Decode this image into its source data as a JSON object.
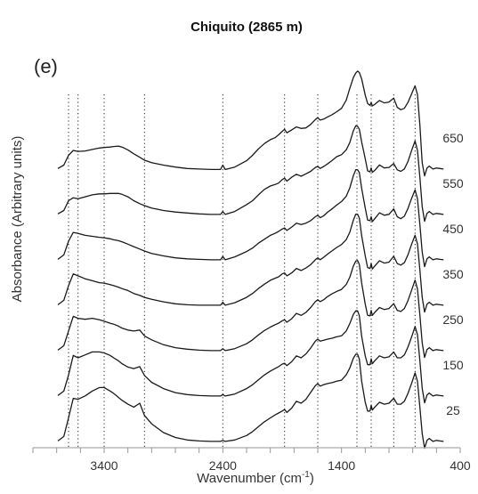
{
  "chart_data": {
    "type": "line",
    "title": "Chiquito (2865 m)",
    "panel_label": "(e)",
    "xlabel_main": "Wavenumber (cm",
    "xlabel_sup": "-1",
    "xlabel_tail": ")",
    "ylabel": "Absorbance (Arbitrary units)",
    "xlim": [
      4000,
      400
    ],
    "x_reversed": true,
    "xticks": [
      3400,
      2400,
      1400,
      400
    ],
    "y_axis_ticks": false,
    "grid": false,
    "reference_lines": [
      3700,
      3620,
      3400,
      3060,
      2400,
      1880,
      1600,
      1270,
      1150,
      960,
      780
    ],
    "series": [
      {
        "name": "650",
        "x": [
          3790,
          3740,
          3700,
          3660,
          3620,
          3560,
          3500,
          3440,
          3400,
          3350,
          3320,
          3280,
          3250,
          3200,
          3150,
          3100,
          3060,
          3000,
          2900,
          2800,
          2700,
          2600,
          2500,
          2420,
          2400,
          2380,
          2300,
          2200,
          2150,
          2100,
          2050,
          2000,
          1960,
          1930,
          1900,
          1880,
          1860,
          1820,
          1780,
          1740,
          1700,
          1660,
          1620,
          1600,
          1580,
          1550,
          1520,
          1480,
          1440,
          1400,
          1360,
          1330,
          1300,
          1280,
          1265,
          1250,
          1230,
          1200,
          1180,
          1160,
          1150,
          1140,
          1120,
          1080,
          1040,
          1000,
          960,
          930,
          900,
          870,
          840,
          810,
          780,
          760,
          740,
          720,
          700,
          680,
          660,
          630,
          600,
          570,
          540
        ],
        "y": [
          0.03,
          0.1,
          0.3,
          0.4,
          0.38,
          0.39,
          0.42,
          0.45,
          0.46,
          0.47,
          0.48,
          0.49,
          0.47,
          0.41,
          0.33,
          0.26,
          0.2,
          0.15,
          0.1,
          0.06,
          0.03,
          0.02,
          0.01,
          0.01,
          0.1,
          0.01,
          0.06,
          0.19,
          0.3,
          0.43,
          0.54,
          0.62,
          0.66,
          0.72,
          0.79,
          0.83,
          0.76,
          0.82,
          0.88,
          0.85,
          0.86,
          0.93,
          1.03,
          1.07,
          1.02,
          1.04,
          1.08,
          1.13,
          1.19,
          1.26,
          1.43,
          1.67,
          1.89,
          1.98,
          2.02,
          1.99,
          1.86,
          1.53,
          1.36,
          1.32,
          1.38,
          1.31,
          1.34,
          1.42,
          1.37,
          1.39,
          1.47,
          1.28,
          1.23,
          1.26,
          1.38,
          1.55,
          1.72,
          1.54,
          0.92,
          0.15,
          -0.12,
          0.04,
          0.08,
          0.02,
          0.04,
          0.03,
          0.02
        ]
      },
      {
        "name": "550",
        "x": [
          3790,
          3740,
          3700,
          3660,
          3620,
          3560,
          3500,
          3440,
          3400,
          3350,
          3320,
          3280,
          3250,
          3200,
          3150,
          3100,
          3060,
          3000,
          2900,
          2800,
          2700,
          2600,
          2500,
          2420,
          2400,
          2380,
          2300,
          2200,
          2150,
          2100,
          2050,
          2000,
          1960,
          1930,
          1900,
          1880,
          1860,
          1820,
          1780,
          1740,
          1700,
          1660,
          1620,
          1600,
          1580,
          1550,
          1520,
          1480,
          1440,
          1400,
          1360,
          1330,
          1300,
          1280,
          1265,
          1250,
          1230,
          1200,
          1180,
          1160,
          1150,
          1140,
          1120,
          1080,
          1040,
          1000,
          960,
          930,
          900,
          870,
          840,
          810,
          780,
          760,
          740,
          720,
          700,
          680,
          660,
          630,
          600,
          570,
          540
        ],
        "y": [
          0.03,
          0.1,
          0.3,
          0.36,
          0.34,
          0.38,
          0.42,
          0.44,
          0.44,
          0.45,
          0.45,
          0.45,
          0.43,
          0.38,
          0.3,
          0.24,
          0.2,
          0.15,
          0.1,
          0.07,
          0.05,
          0.03,
          0.02,
          0.02,
          0.08,
          0.02,
          0.08,
          0.22,
          0.3,
          0.42,
          0.53,
          0.6,
          0.63,
          0.66,
          0.73,
          0.76,
          0.7,
          0.78,
          0.84,
          0.8,
          0.85,
          0.9,
          0.98,
          1.0,
          0.96,
          1.0,
          1.05,
          1.12,
          1.2,
          1.24,
          1.34,
          1.49,
          1.73,
          1.83,
          1.82,
          1.76,
          1.5,
          1.16,
          0.91,
          0.89,
          0.97,
          0.88,
          0.92,
          1.03,
          0.97,
          0.98,
          1.06,
          0.93,
          0.9,
          0.95,
          1.1,
          1.32,
          1.52,
          1.33,
          0.78,
          0.18,
          -0.12,
          0.04,
          0.08,
          0.02,
          0.04,
          0.03,
          0.02
        ]
      },
      {
        "name": "450",
        "x": [
          3790,
          3740,
          3700,
          3660,
          3620,
          3560,
          3500,
          3440,
          3400,
          3350,
          3320,
          3280,
          3250,
          3200,
          3150,
          3100,
          3060,
          3000,
          2900,
          2800,
          2700,
          2600,
          2500,
          2420,
          2400,
          2380,
          2300,
          2200,
          2150,
          2100,
          2050,
          2000,
          1960,
          1930,
          1900,
          1880,
          1860,
          1820,
          1780,
          1740,
          1700,
          1660,
          1620,
          1600,
          1580,
          1550,
          1520,
          1480,
          1440,
          1400,
          1360,
          1330,
          1300,
          1280,
          1265,
          1250,
          1230,
          1200,
          1180,
          1160,
          1150,
          1140,
          1120,
          1080,
          1040,
          1000,
          960,
          930,
          900,
          870,
          840,
          810,
          780,
          760,
          740,
          720,
          700,
          680,
          660,
          630,
          600,
          570,
          540
        ],
        "y": [
          0.03,
          0.12,
          0.4,
          0.58,
          0.56,
          0.52,
          0.5,
          0.48,
          0.47,
          0.45,
          0.43,
          0.41,
          0.39,
          0.34,
          0.29,
          0.24,
          0.2,
          0.15,
          0.1,
          0.06,
          0.04,
          0.03,
          0.02,
          0.02,
          0.09,
          0.02,
          0.08,
          0.19,
          0.26,
          0.36,
          0.44,
          0.52,
          0.56,
          0.6,
          0.65,
          0.67,
          0.62,
          0.69,
          0.77,
          0.74,
          0.77,
          0.82,
          0.9,
          0.93,
          0.88,
          0.92,
          0.99,
          1.06,
          1.14,
          1.21,
          1.32,
          1.49,
          1.74,
          1.86,
          1.86,
          1.8,
          1.48,
          1.08,
          0.83,
          0.82,
          0.9,
          0.8,
          0.86,
          0.98,
          0.93,
          0.95,
          1.06,
          0.9,
          0.86,
          0.91,
          1.07,
          1.27,
          1.45,
          1.27,
          0.74,
          0.18,
          -0.12,
          0.04,
          0.08,
          0.02,
          0.04,
          0.03,
          0.02
        ]
      },
      {
        "name": "350",
        "x": [
          3790,
          3740,
          3700,
          3660,
          3620,
          3560,
          3500,
          3440,
          3400,
          3350,
          3320,
          3280,
          3250,
          3200,
          3150,
          3100,
          3060,
          3000,
          2900,
          2800,
          2700,
          2600,
          2500,
          2420,
          2400,
          2380,
          2300,
          2200,
          2150,
          2100,
          2050,
          2000,
          1960,
          1930,
          1900,
          1880,
          1860,
          1820,
          1780,
          1740,
          1700,
          1660,
          1620,
          1600,
          1580,
          1550,
          1520,
          1480,
          1440,
          1400,
          1360,
          1330,
          1300,
          1280,
          1265,
          1250,
          1230,
          1200,
          1180,
          1160,
          1150,
          1140,
          1120,
          1080,
          1040,
          1000,
          960,
          930,
          900,
          870,
          840,
          810,
          780,
          760,
          740,
          720,
          700,
          680,
          660,
          630,
          600,
          570,
          540
        ],
        "y": [
          0.03,
          0.12,
          0.42,
          0.66,
          0.62,
          0.56,
          0.52,
          0.48,
          0.47,
          0.44,
          0.42,
          0.39,
          0.36,
          0.32,
          0.26,
          0.22,
          0.18,
          0.14,
          0.09,
          0.05,
          0.03,
          0.02,
          0.02,
          0.02,
          0.08,
          0.02,
          0.07,
          0.18,
          0.26,
          0.36,
          0.45,
          0.53,
          0.57,
          0.6,
          0.66,
          0.68,
          0.62,
          0.68,
          0.77,
          0.73,
          0.78,
          0.85,
          0.95,
          0.99,
          0.95,
          1.0,
          1.06,
          1.13,
          1.2,
          1.26,
          1.36,
          1.51,
          1.76,
          1.88,
          1.88,
          1.8,
          1.44,
          1.03,
          0.79,
          0.77,
          0.87,
          0.76,
          0.82,
          0.93,
          0.88,
          0.9,
          1.02,
          0.87,
          0.84,
          0.89,
          1.05,
          1.26,
          1.45,
          1.27,
          0.74,
          0.18,
          -0.12,
          0.04,
          0.08,
          0.02,
          0.04,
          0.03,
          0.02
        ]
      },
      {
        "name": "250",
        "x": [
          3790,
          3740,
          3700,
          3660,
          3620,
          3560,
          3500,
          3440,
          3400,
          3350,
          3320,
          3280,
          3250,
          3200,
          3150,
          3100,
          3060,
          3000,
          2900,
          2800,
          2700,
          2600,
          2500,
          2420,
          2400,
          2380,
          2300,
          2200,
          2150,
          2100,
          2050,
          2000,
          1960,
          1930,
          1900,
          1880,
          1860,
          1820,
          1780,
          1740,
          1700,
          1660,
          1620,
          1600,
          1580,
          1550,
          1520,
          1480,
          1440,
          1400,
          1360,
          1330,
          1300,
          1280,
          1265,
          1250,
          1230,
          1200,
          1180,
          1160,
          1150,
          1140,
          1120,
          1080,
          1040,
          1000,
          960,
          930,
          900,
          870,
          840,
          810,
          780,
          760,
          740,
          720,
          700,
          680,
          660,
          630,
          600,
          570,
          540
        ],
        "y": [
          0.03,
          0.12,
          0.42,
          0.72,
          0.68,
          0.66,
          0.68,
          0.65,
          0.62,
          0.58,
          0.56,
          0.52,
          0.48,
          0.44,
          0.42,
          0.44,
          0.32,
          0.24,
          0.14,
          0.08,
          0.05,
          0.03,
          0.02,
          0.02,
          0.06,
          0.02,
          0.06,
          0.16,
          0.24,
          0.34,
          0.43,
          0.5,
          0.55,
          0.58,
          0.63,
          0.65,
          0.6,
          0.67,
          0.78,
          0.74,
          0.8,
          0.9,
          1.02,
          1.06,
          1.02,
          1.06,
          1.12,
          1.18,
          1.23,
          1.27,
          1.37,
          1.52,
          1.75,
          1.85,
          1.86,
          1.78,
          1.4,
          0.97,
          0.74,
          0.73,
          0.84,
          0.74,
          0.8,
          0.9,
          0.86,
          0.88,
          0.98,
          0.84,
          0.82,
          0.88,
          1.04,
          1.25,
          1.46,
          1.28,
          0.75,
          0.18,
          -0.12,
          0.04,
          0.08,
          0.02,
          0.04,
          0.03,
          0.02
        ]
      },
      {
        "name": "150",
        "x": [
          3790,
          3740,
          3700,
          3660,
          3620,
          3560,
          3500,
          3440,
          3400,
          3350,
          3320,
          3280,
          3250,
          3200,
          3150,
          3100,
          3060,
          3000,
          2900,
          2800,
          2700,
          2600,
          2500,
          2420,
          2400,
          2380,
          2300,
          2200,
          2150,
          2100,
          2050,
          2000,
          1960,
          1930,
          1900,
          1880,
          1860,
          1820,
          1780,
          1740,
          1700,
          1660,
          1620,
          1600,
          1580,
          1550,
          1520,
          1480,
          1440,
          1400,
          1360,
          1330,
          1300,
          1280,
          1265,
          1250,
          1230,
          1200,
          1180,
          1160,
          1150,
          1140,
          1120,
          1080,
          1040,
          1000,
          960,
          930,
          900,
          870,
          840,
          810,
          780,
          760,
          740,
          720,
          700,
          680,
          660,
          630,
          600,
          570,
          540
        ],
        "y": [
          0.03,
          0.12,
          0.45,
          0.85,
          0.8,
          0.86,
          0.92,
          0.92,
          0.9,
          0.85,
          0.8,
          0.74,
          0.68,
          0.61,
          0.58,
          0.62,
          0.44,
          0.3,
          0.17,
          0.09,
          0.05,
          0.03,
          0.02,
          0.02,
          0.05,
          0.02,
          0.06,
          0.17,
          0.25,
          0.35,
          0.45,
          0.53,
          0.58,
          0.62,
          0.67,
          0.69,
          0.64,
          0.72,
          0.84,
          0.8,
          0.88,
          1.0,
          1.14,
          1.18,
          1.14,
          1.16,
          1.18,
          1.2,
          1.23,
          1.25,
          1.35,
          1.5,
          1.69,
          1.76,
          1.76,
          1.66,
          1.24,
          0.84,
          0.66,
          0.66,
          0.78,
          0.68,
          0.74,
          0.84,
          0.8,
          0.82,
          0.92,
          0.8,
          0.8,
          0.86,
          1.02,
          1.22,
          1.44,
          1.27,
          0.74,
          0.18,
          -0.12,
          0.04,
          0.08,
          0.02,
          0.04,
          0.03,
          0.02
        ]
      },
      {
        "name": "25",
        "x": [
          3790,
          3740,
          3700,
          3660,
          3620,
          3560,
          3500,
          3440,
          3400,
          3350,
          3320,
          3280,
          3250,
          3200,
          3150,
          3100,
          3060,
          3000,
          2900,
          2800,
          2700,
          2600,
          2500,
          2420,
          2400,
          2380,
          2300,
          2200,
          2150,
          2100,
          2050,
          2000,
          1960,
          1930,
          1900,
          1880,
          1860,
          1820,
          1780,
          1740,
          1700,
          1660,
          1620,
          1600,
          1580,
          1550,
          1520,
          1480,
          1440,
          1400,
          1360,
          1330,
          1300,
          1280,
          1265,
          1250,
          1230,
          1200,
          1180,
          1160,
          1150,
          1140,
          1120,
          1080,
          1040,
          1000,
          960,
          930,
          900,
          870,
          840,
          810,
          780,
          760,
          740,
          720,
          700,
          680,
          660,
          630,
          600,
          570,
          540
        ],
        "y": [
          0.03,
          0.12,
          0.5,
          0.9,
          0.88,
          0.95,
          1.05,
          1.12,
          1.12,
          1.05,
          1.0,
          0.92,
          0.86,
          0.78,
          0.72,
          0.8,
          0.55,
          0.38,
          0.2,
          0.1,
          0.05,
          0.03,
          0.02,
          0.02,
          0.04,
          0.02,
          0.05,
          0.14,
          0.22,
          0.32,
          0.42,
          0.5,
          0.56,
          0.6,
          0.64,
          0.67,
          0.61,
          0.7,
          0.84,
          0.8,
          0.88,
          1.02,
          1.16,
          1.2,
          1.15,
          1.18,
          1.2,
          1.22,
          1.25,
          1.27,
          1.38,
          1.52,
          1.72,
          1.8,
          1.8,
          1.7,
          1.25,
          0.82,
          0.64,
          0.64,
          0.76,
          0.66,
          0.72,
          0.82,
          0.78,
          0.8,
          0.9,
          0.78,
          0.78,
          0.84,
          1.0,
          1.2,
          1.42,
          1.25,
          0.72,
          0.18,
          -0.12,
          0.04,
          0.08,
          0.02,
          0.04,
          0.03,
          0.02
        ]
      }
    ]
  }
}
